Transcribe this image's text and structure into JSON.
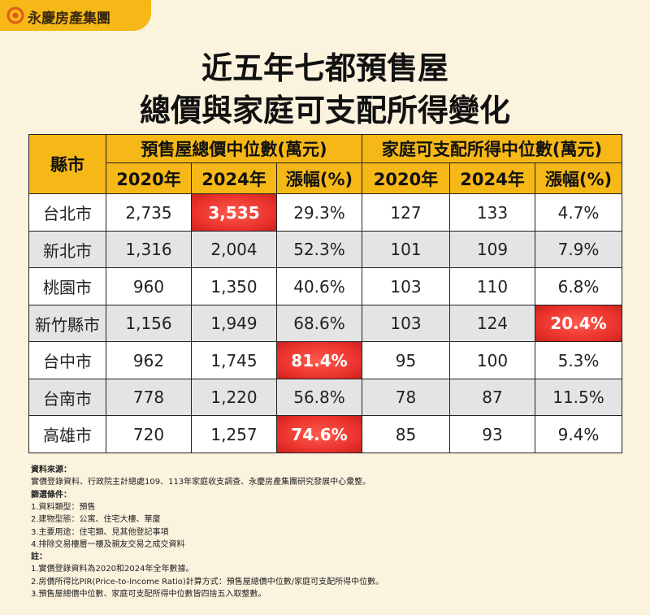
{
  "logo": {
    "text": "永慶房產集團"
  },
  "title": {
    "line1": "近五年七都預售屋",
    "line2": "總價與家庭可支配所得變化"
  },
  "table": {
    "header": {
      "county": "縣市",
      "groups": [
        "預售屋總價中位數(萬元)",
        "家庭可支配所得中位數(萬元)"
      ],
      "subheaders": [
        "2020年",
        "2024年",
        "漲幅(%)",
        "2020年",
        "2024年",
        "漲幅(%)"
      ]
    },
    "rows": [
      [
        "台北市",
        "2,735",
        "3,535",
        "29.3%",
        "127",
        "133",
        "4.7%"
      ],
      [
        "新北市",
        "1,316",
        "2,004",
        "52.3%",
        "101",
        "109",
        "7.9%"
      ],
      [
        "桃園市",
        "960",
        "1,350",
        "40.6%",
        "103",
        "110",
        "6.8%"
      ],
      [
        "新竹縣市",
        "1,156",
        "1,949",
        "68.6%",
        "103",
        "124",
        "20.4%"
      ],
      [
        "台中市",
        "962",
        "1,745",
        "81.4%",
        "95",
        "100",
        "5.3%"
      ],
      [
        "台南市",
        "778",
        "1,220",
        "56.8%",
        "78",
        "87",
        "11.5%"
      ],
      [
        "高雄市",
        "720",
        "1,257",
        "74.6%",
        "85",
        "93",
        "9.4%"
      ]
    ],
    "highlight": [
      [
        0,
        2
      ],
      [
        3,
        6
      ],
      [
        4,
        3
      ],
      [
        6,
        3
      ]
    ]
  },
  "notes": [
    {
      "heading": "資料來源：",
      "lines": [
        "實價登錄資料、行政院主計總處109、113年家庭收支調查、永慶房產集團研究發展中心彙整。"
      ]
    },
    {
      "heading": "篩選條件：",
      "lines": [
        "1.資料類型：預售",
        "2.建物型態：公寓、住宅大樓、華廈",
        "3.主要用途：住宅類、見其他登記事項",
        "4.排除交易樓層一樓及親友交易之成交資料"
      ]
    },
    {
      "heading": "註：",
      "lines": [
        "1.實價登錄資料為2020和2024年全年數據。",
        "2.房價所得比PIR(Price-to-Income Ratio)計算方式：預售屋總價中位數/家庭可支配所得中位數。",
        "3.預售屋總價中位數、家庭可支配所得中位數皆四捨五入取整數。"
      ]
    }
  ]
}
